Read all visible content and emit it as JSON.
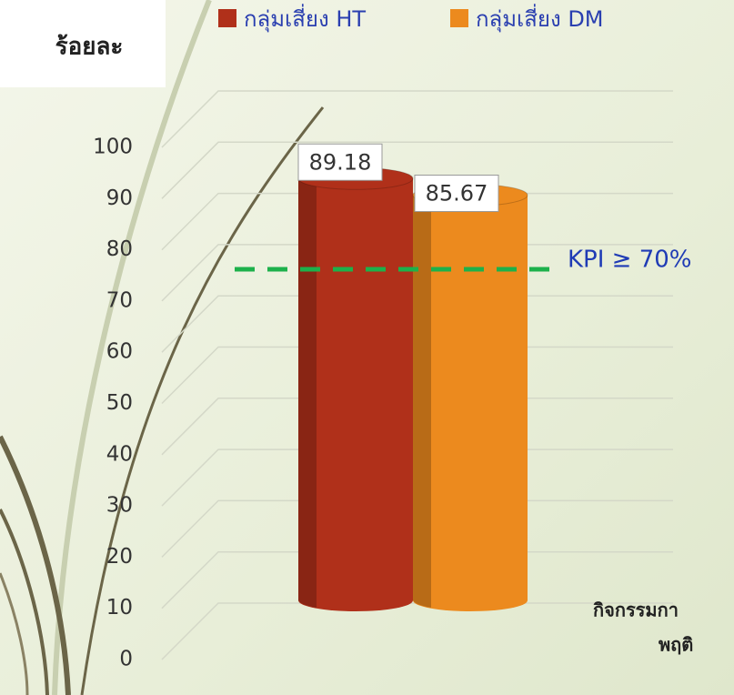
{
  "chart_data": {
    "type": "bar",
    "y_label": "ร้อยละ",
    "categories": [
      null
    ],
    "series": [
      {
        "name": "กลุ่มเสี่ยง HT",
        "color": "#b0301a",
        "values": [
          89.18
        ]
      },
      {
        "name": "กลุ่มเสี่ยง DM",
        "color": "#ec8a1e",
        "values": [
          85.67
        ]
      }
    ],
    "ylim": [
      0,
      100
    ],
    "yticks": [
      0,
      10,
      20,
      30,
      40,
      50,
      60,
      70,
      80,
      90,
      100
    ],
    "grid": true,
    "kpi": {
      "value": 70,
      "label": "KPI ≥ 70%",
      "color": "#1db14b"
    },
    "x_label_lines": [
      "กิจกรรมกา",
      "พฤติ"
    ]
  }
}
